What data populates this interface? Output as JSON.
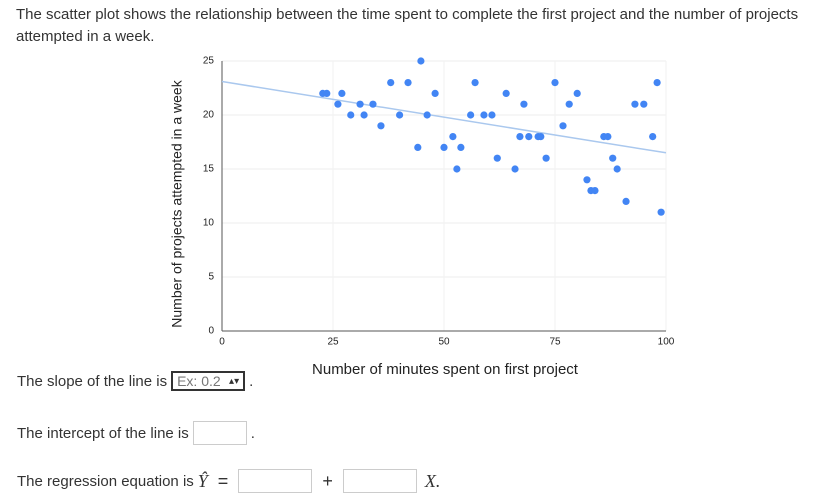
{
  "question": "The scatter plot shows the relationship between the time spent to complete the first project and the number of projects attempted in a week.",
  "chart_data": {
    "type": "scatter",
    "xlabel": "Number of minutes spent on first project",
    "ylabel": "Number of projects attempted in a week",
    "color": "#4285f4",
    "x": [
      22.7,
      23.6,
      27,
      26.1,
      31.1,
      34,
      29,
      32,
      35.8,
      38,
      41.9,
      40,
      46.2,
      44.8,
      44.1,
      48,
      50,
      52,
      53.8,
      52.9,
      57,
      56,
      59,
      60.8,
      62,
      64,
      66,
      68,
      67.1,
      69.1,
      71.2,
      71.8,
      73,
      75,
      76.8,
      78.2,
      80,
      82.2,
      83.1,
      84,
      86,
      86.9,
      88,
      89,
      91,
      93,
      95,
      97,
      98,
      98.9
    ],
    "y": [
      22,
      22,
      22,
      21,
      21,
      21,
      20,
      20,
      19,
      23,
      23,
      20,
      20,
      25,
      17,
      22,
      17,
      18,
      17,
      15,
      23,
      20,
      20,
      20,
      16,
      22,
      15,
      21,
      18,
      18,
      18,
      18,
      16,
      23,
      19,
      21,
      22,
      14,
      13,
      13,
      18,
      18,
      16,
      15,
      12,
      21,
      21,
      18,
      23,
      11
    ],
    "trendline": {
      "color": "#aac8ee",
      "x": [
        0,
        100
      ],
      "y": [
        23.1,
        16.5
      ]
    },
    "xlim": [
      0,
      100
    ],
    "xticks": [
      0,
      25,
      50,
      75,
      100
    ],
    "ylim": [
      0,
      25
    ],
    "yticks": [
      0,
      5,
      10,
      15,
      20,
      25
    ],
    "grid": true
  },
  "form": {
    "slope_label": "The slope of the line is",
    "slope_placeholder": "Ex: 0.2",
    "period": ".",
    "intercept_label": "The intercept of the line is",
    "regression_label": "The regression equation is",
    "yhat": "Ŷ",
    "equals": "=",
    "plus": "+",
    "x_var": "X."
  }
}
